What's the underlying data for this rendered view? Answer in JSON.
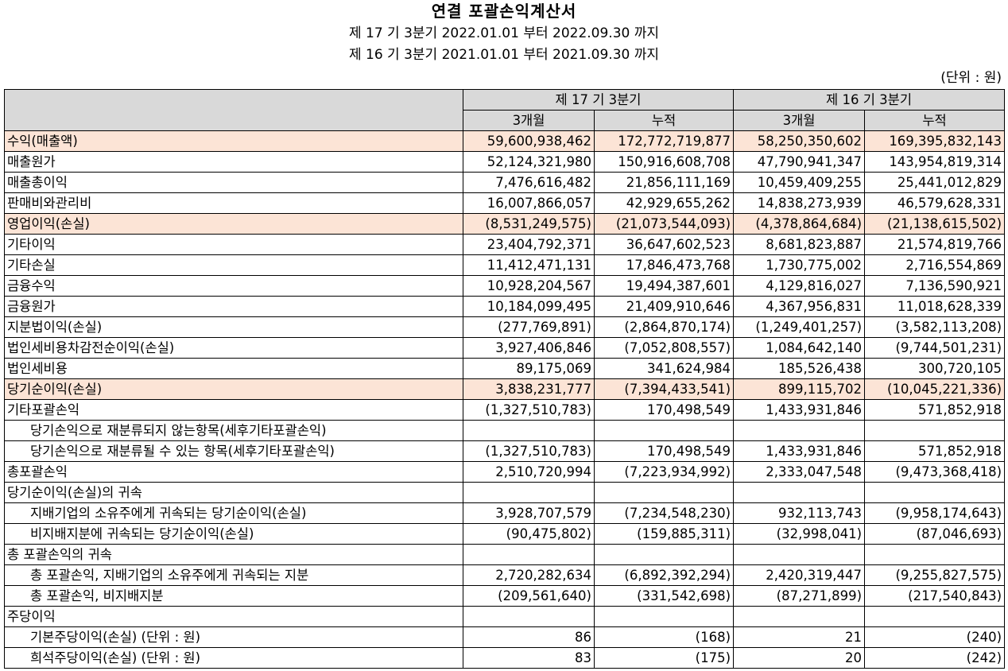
{
  "header": {
    "title": "연결 포괄손익계산서",
    "period_current": "제 17 기 3분기 2022.01.01 부터 2022.09.30 까지",
    "period_prior": "제 16 기 3분기 2021.01.01 부터 2021.09.30 까지",
    "unit": "(단위 : 원)"
  },
  "columns": {
    "groups": [
      "제 17 기 3분기",
      "제 16 기 3분기"
    ],
    "subs": [
      "3개월",
      "누적",
      "3개월",
      "누적"
    ]
  },
  "rows": [
    {
      "label": "수익(매출액)",
      "values": [
        "59,600,938,462",
        "172,772,719,877",
        "58,250,350,602",
        "169,395,832,143"
      ]
    },
    {
      "label": "매출원가",
      "values": [
        "52,124,321,980",
        "150,916,608,708",
        "47,790,941,347",
        "143,954,819,314"
      ]
    },
    {
      "label": "매출총이익",
      "values": [
        "7,476,616,482",
        "21,856,111,169",
        "10,459,409,255",
        "25,441,012,829"
      ]
    },
    {
      "label": "판매비와관리비",
      "values": [
        "16,007,866,057",
        "42,929,655,262",
        "14,838,273,939",
        "46,579,628,331"
      ]
    },
    {
      "label": "영업이익(손실)",
      "values": [
        "(8,531,249,575)",
        "(21,073,544,093)",
        "(4,378,864,684)",
        "(21,138,615,502)"
      ]
    },
    {
      "label": "기타이익",
      "values": [
        "23,404,792,371",
        "36,647,602,523",
        "8,681,823,887",
        "21,574,819,766"
      ]
    },
    {
      "label": "기타손실",
      "values": [
        "11,412,471,131",
        "17,846,473,768",
        "1,730,775,002",
        "2,716,554,869"
      ]
    },
    {
      "label": "금융수익",
      "values": [
        "10,928,204,567",
        "19,494,387,601",
        "4,129,816,027",
        "7,136,590,921"
      ]
    },
    {
      "label": "금융원가",
      "values": [
        "10,184,099,495",
        "21,409,910,646",
        "4,367,956,831",
        "11,018,628,339"
      ]
    },
    {
      "label": "지분법이익(손실)",
      "values": [
        "(277,769,891)",
        "(2,864,870,174)",
        "(1,249,401,257)",
        "(3,582,113,208)"
      ]
    },
    {
      "label": "법인세비용차감전순이익(손실)",
      "values": [
        "3,927,406,846",
        "(7,052,808,557)",
        "1,084,642,140",
        "(9,744,501,231)"
      ]
    },
    {
      "label": "법인세비용",
      "values": [
        "89,175,069",
        "341,624,984",
        "185,526,438",
        "300,720,105"
      ]
    },
    {
      "label": "당기순이익(손실)",
      "values": [
        "3,838,231,777",
        "(7,394,433,541)",
        "899,115,702",
        "(10,045,221,336)"
      ]
    },
    {
      "label": "기타포괄손익",
      "values": [
        "(1,327,510,783)",
        "170,498,549",
        "1,433,931,846",
        "571,852,918"
      ]
    },
    {
      "label": "당기손익으로 재분류되지 않는항목(세후기타포괄손익)",
      "values": [
        "",
        "",
        "",
        ""
      ]
    },
    {
      "label": "당기손익으로 재분류될 수 있는 항목(세후기타포괄손익)",
      "values": [
        "(1,327,510,783)",
        "170,498,549",
        "1,433,931,846",
        "571,852,918"
      ]
    },
    {
      "label": "총포괄손익",
      "values": [
        "2,510,720,994",
        "(7,223,934,992)",
        "2,333,047,548",
        "(9,473,368,418)"
      ]
    },
    {
      "label": "당기순이익(손실)의 귀속",
      "values": [
        "",
        "",
        "",
        ""
      ]
    },
    {
      "label": "지배기업의 소유주에게 귀속되는 당기순이익(손실)",
      "values": [
        "3,928,707,579",
        "(7,234,548,230)",
        "932,113,743",
        "(9,958,174,643)"
      ]
    },
    {
      "label": "비지배지분에 귀속되는 당기순이익(손실)",
      "values": [
        "(90,475,802)",
        "(159,885,311)",
        "(32,998,041)",
        "(87,046,693)"
      ]
    },
    {
      "label": "총 포괄손익의 귀속",
      "values": [
        "",
        "",
        "",
        ""
      ]
    },
    {
      "label": "총 포괄손익, 지배기업의 소유주에게 귀속되는 지분",
      "values": [
        "2,720,282,634",
        "(6,892,392,294)",
        "2,420,319,447",
        "(9,255,827,575)"
      ]
    },
    {
      "label": "총 포괄손익, 비지배지분",
      "values": [
        "(209,561,640)",
        "(331,542,698)",
        "(87,271,899)",
        "(217,540,843)"
      ]
    },
    {
      "label": "주당이익",
      "values": [
        "",
        "",
        "",
        ""
      ]
    },
    {
      "label": "기본주당이익(손실) (단위 : 원)",
      "values": [
        "86",
        "(168)",
        "21",
        "(240)"
      ]
    },
    {
      "label": "희석주당이익(손실) (단위 : 원)",
      "values": [
        "83",
        "(175)",
        "20",
        "(242)"
      ]
    }
  ]
}
